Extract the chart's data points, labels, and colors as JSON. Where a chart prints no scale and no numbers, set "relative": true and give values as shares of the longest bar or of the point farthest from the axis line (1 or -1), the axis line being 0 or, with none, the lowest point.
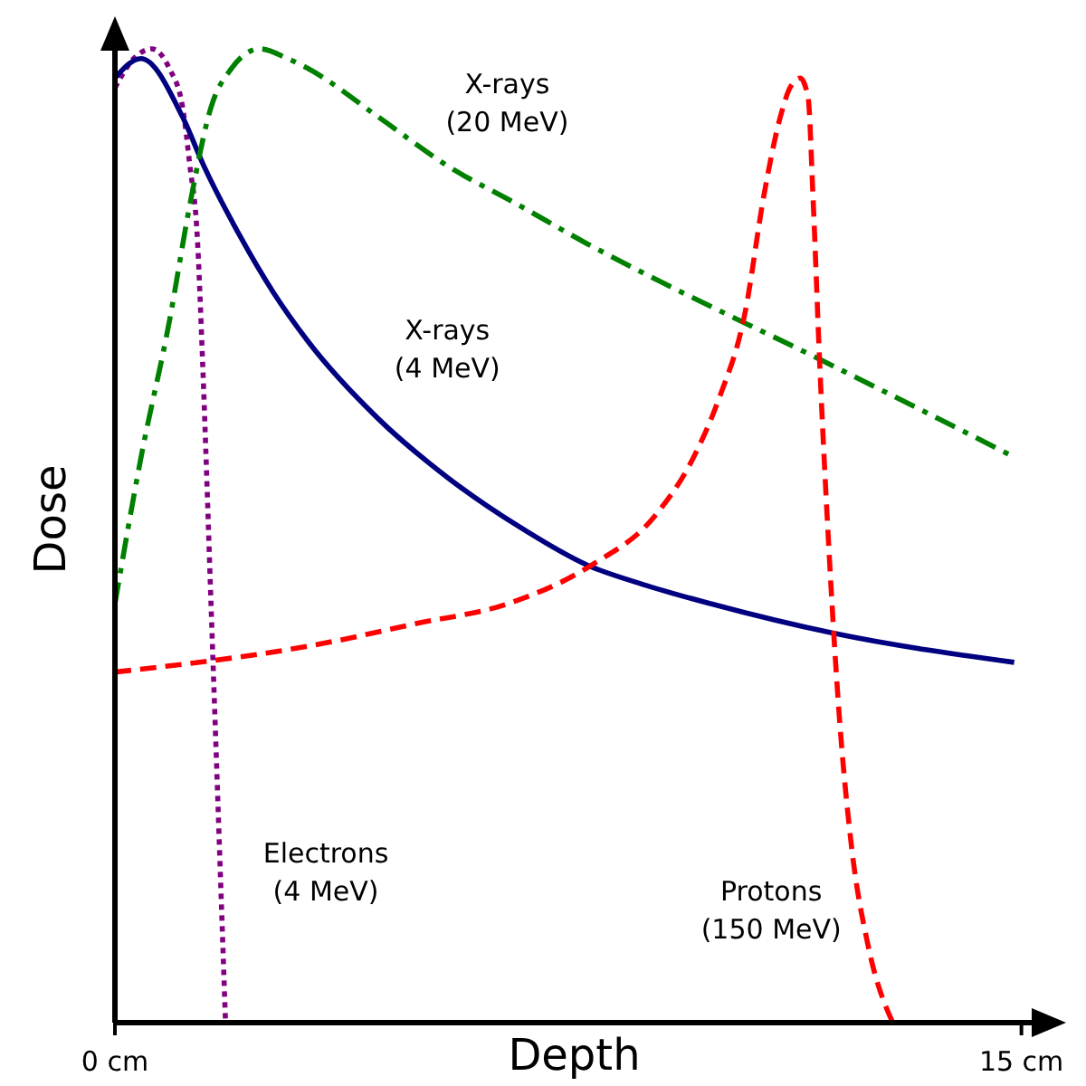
{
  "chart_data": {
    "type": "line",
    "xlabel": "Depth",
    "ylabel": "Dose",
    "relative": true,
    "xlim": [
      0,
      15.2
    ],
    "xticks": [
      {
        "value": 0,
        "label": "0 cm"
      },
      {
        "value": 15,
        "label": "15 cm"
      }
    ],
    "series": [
      {
        "name": "Electrons (4 MeV)",
        "color": "#800080",
        "line_style": "dotted",
        "x": [
          0,
          0.31,
          0.61,
          0.9,
          1.12,
          1.24,
          1.36,
          1.45,
          1.59,
          1.83
        ],
        "values": [
          0.96,
          0.99,
          1.0,
          0.98,
          0.94,
          0.88,
          0.81,
          0.68,
          0.43,
          0
        ]
      },
      {
        "name": "X-rays (4 MeV)",
        "color": "#000080",
        "line_style": "solid",
        "x": [
          0,
          0.43,
          1.12,
          1.47,
          2.05,
          2.62,
          3.19,
          4.36,
          5.5,
          6.67,
          7.81,
          8.74,
          9.87,
          11.88,
          14.88
        ],
        "values": [
          0.97,
          0.99,
          0.93,
          0.88,
          0.81,
          0.75,
          0.7,
          0.62,
          0.56,
          0.51,
          0.47,
          0.45,
          0.43,
          0.4,
          0.37
        ]
      },
      {
        "name": "X-rays (20 MeV)",
        "color": "#008000",
        "line_style": "dashdot",
        "x": [
          0,
          0.43,
          0.9,
          1.24,
          1.59,
          1.93,
          2.4,
          2.86,
          3.19,
          4.36,
          5.5,
          6.67,
          7.81,
          8.74,
          11.7,
          14.91
        ],
        "values": [
          0.43,
          0.58,
          0.72,
          0.84,
          0.94,
          0.98,
          1.0,
          0.99,
          0.98,
          0.93,
          0.88,
          0.84,
          0.8,
          0.77,
          0.68,
          0.58
        ]
      },
      {
        "name": "Protons (150 MeV)",
        "color": "#ff0000",
        "line_style": "dashed",
        "x": [
          0,
          3.49,
          5.0,
          6.49,
          7.89,
          8.93,
          9.57,
          9.99,
          10.43,
          10.74,
          11.01,
          11.17,
          11.34,
          11.47,
          11.55,
          11.66,
          11.82,
          11.98,
          12.19,
          12.46,
          12.87
        ],
        "values": [
          0.36,
          0.39,
          0.41,
          0.43,
          0.47,
          0.52,
          0.58,
          0.64,
          0.73,
          0.85,
          0.93,
          0.96,
          0.97,
          0.95,
          0.85,
          0.68,
          0.48,
          0.32,
          0.18,
          0.08,
          0
        ]
      }
    ]
  }
}
